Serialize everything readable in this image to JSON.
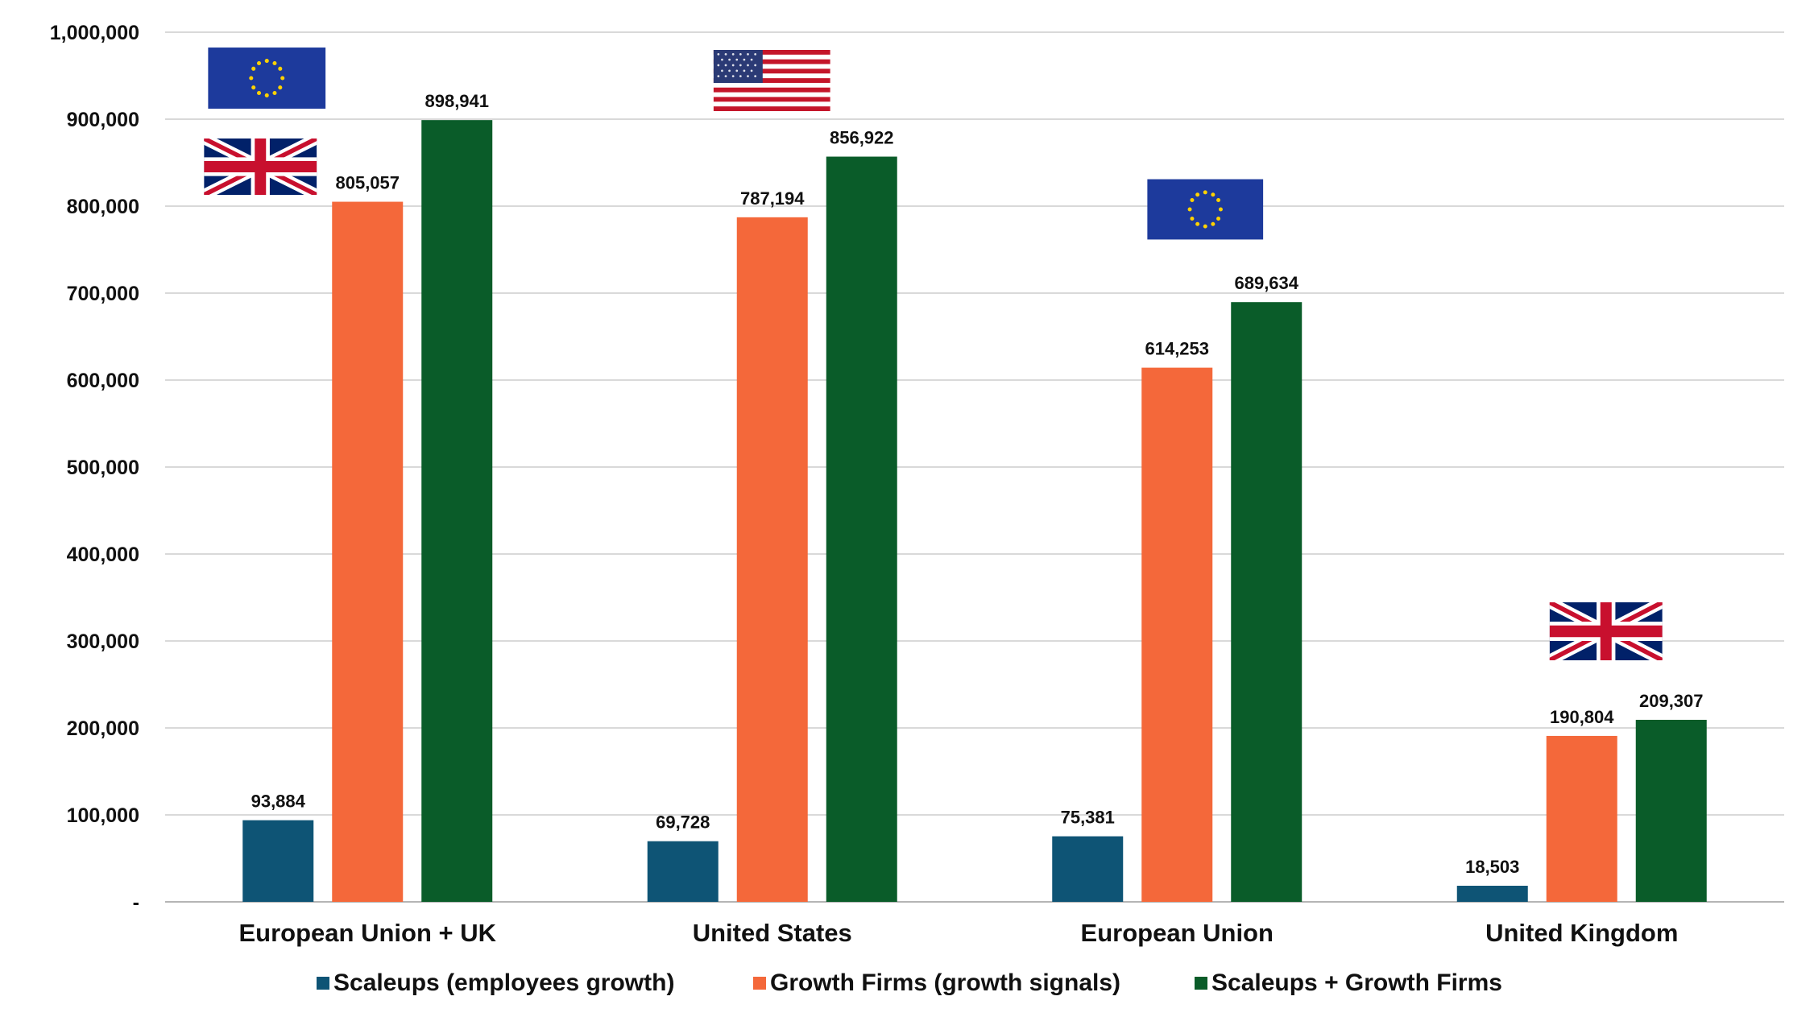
{
  "chart_data": {
    "type": "bar",
    "categories": [
      "European Union + UK",
      "United States",
      "European Union",
      "United Kingdom"
    ],
    "series": [
      {
        "name": "Scaleups (employees growth)",
        "color": "#0e5475",
        "values": [
          93884,
          69728,
          75381,
          18503
        ]
      },
      {
        "name": "Growth Firms (growth signals)",
        "color": "#f4683a",
        "values": [
          805057,
          787194,
          614253,
          190804
        ]
      },
      {
        "name": "Scaleups + Growth Firms",
        "color": "#0a5c29",
        "values": [
          898941,
          856922,
          689634,
          209307
        ]
      }
    ],
    "data_labels": [
      [
        "93,884",
        "69,728",
        "75,381",
        "18,503"
      ],
      [
        "805,057",
        "787,194",
        "614,253",
        "190,804"
      ],
      [
        "898,941",
        "856,922",
        "689,634",
        "209,307"
      ]
    ],
    "yticks": [
      {
        "value": 0,
        "label": "-"
      },
      {
        "value": 100000,
        "label": "100,000"
      },
      {
        "value": 200000,
        "label": "200,000"
      },
      {
        "value": 300000,
        "label": "300,000"
      },
      {
        "value": 400000,
        "label": "400,000"
      },
      {
        "value": 500000,
        "label": "500,000"
      },
      {
        "value": 600000,
        "label": "600,000"
      },
      {
        "value": 700000,
        "label": "700,000"
      },
      {
        "value": 800000,
        "label": "800,000"
      },
      {
        "value": 900000,
        "label": "900,000"
      },
      {
        "value": 1000000,
        "label": "1,000,000"
      }
    ],
    "ylim": [
      0,
      1000000
    ],
    "grid": true,
    "legend_position": "bottom",
    "title": "",
    "xlabel": "",
    "ylabel": "",
    "flags": [
      {
        "category": "European Union + UK",
        "icons": [
          "eu-flag-icon",
          "uk-flag-icon"
        ]
      },
      {
        "category": "United States",
        "icons": [
          "us-flag-icon"
        ]
      },
      {
        "category": "European Union",
        "icons": [
          "eu-flag-icon"
        ]
      },
      {
        "category": "United Kingdom",
        "icons": [
          "uk-flag-icon"
        ]
      }
    ]
  }
}
